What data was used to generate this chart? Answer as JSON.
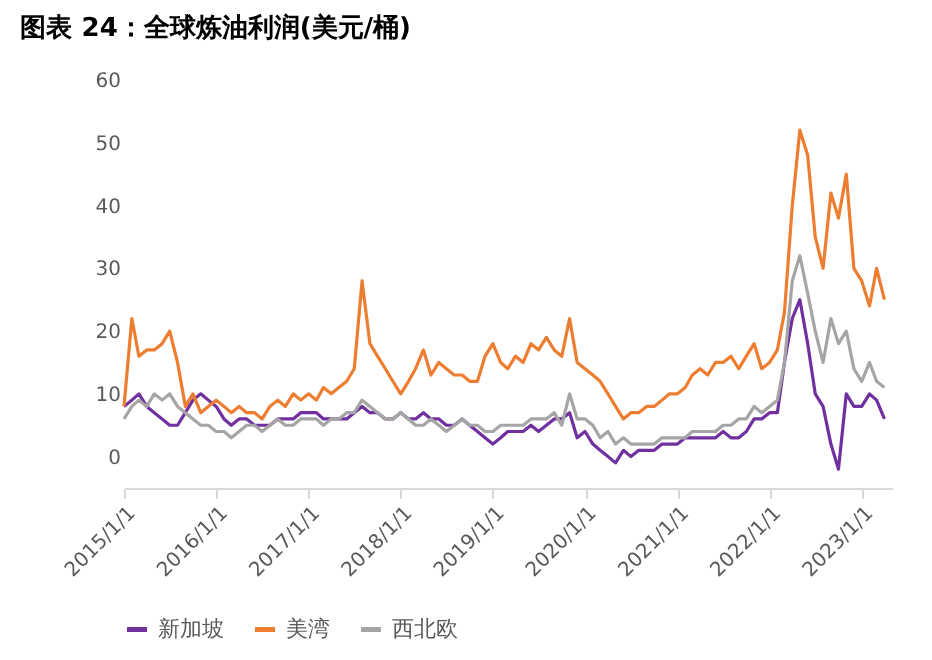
{
  "chart_data": {
    "type": "line",
    "title": "图表 24：全球炼油利润(美元/桶)",
    "x": [
      "2015-01",
      "2015-02",
      "2015-03",
      "2015-04",
      "2015-05",
      "2015-06",
      "2015-07",
      "2015-08",
      "2015-09",
      "2015-10",
      "2015-11",
      "2015-12",
      "2016-01",
      "2016-02",
      "2016-03",
      "2016-04",
      "2016-05",
      "2016-06",
      "2016-07",
      "2016-08",
      "2016-09",
      "2016-10",
      "2016-11",
      "2016-12",
      "2017-01",
      "2017-02",
      "2017-03",
      "2017-04",
      "2017-05",
      "2017-06",
      "2017-07",
      "2017-08",
      "2017-09",
      "2017-10",
      "2017-11",
      "2017-12",
      "2018-01",
      "2018-02",
      "2018-03",
      "2018-04",
      "2018-05",
      "2018-06",
      "2018-07",
      "2018-08",
      "2018-09",
      "2018-10",
      "2018-11",
      "2018-12",
      "2019-01",
      "2019-02",
      "2019-03",
      "2019-04",
      "2019-05",
      "2019-06",
      "2019-07",
      "2019-08",
      "2019-09",
      "2019-10",
      "2019-11",
      "2019-12",
      "2020-01",
      "2020-02",
      "2020-03",
      "2020-04",
      "2020-05",
      "2020-06",
      "2020-07",
      "2020-08",
      "2020-09",
      "2020-10",
      "2020-11",
      "2020-12",
      "2021-01",
      "2021-02",
      "2021-03",
      "2021-04",
      "2021-05",
      "2021-06",
      "2021-07",
      "2021-08",
      "2021-09",
      "2021-10",
      "2021-11",
      "2021-12",
      "2022-01",
      "2022-02",
      "2022-03",
      "2022-04",
      "2022-05",
      "2022-06",
      "2022-07",
      "2022-08",
      "2022-09",
      "2022-10",
      "2022-11",
      "2022-12",
      "2023-01",
      "2023-02",
      "2023-03",
      "2023-04"
    ],
    "series": [
      {
        "name": "新加坡",
        "color": "#7030a0",
        "values": [
          8,
          9,
          10,
          8,
          7,
          6,
          5,
          5,
          7,
          9,
          10,
          9,
          8,
          6,
          5,
          6,
          6,
          5,
          5,
          5,
          6,
          6,
          6,
          7,
          7,
          7,
          6,
          6,
          6,
          6,
          7,
          8,
          7,
          7,
          6,
          6,
          7,
          6,
          6,
          7,
          6,
          6,
          5,
          5,
          6,
          5,
          4,
          3,
          2,
          3,
          4,
          4,
          4,
          5,
          4,
          5,
          6,
          6,
          7,
          3,
          4,
          2,
          1,
          0,
          -1,
          1,
          0,
          1,
          1,
          1,
          2,
          2,
          2,
          3,
          3,
          3,
          3,
          3,
          4,
          3,
          3,
          4,
          6,
          6,
          7,
          7,
          15,
          22,
          25,
          18,
          10,
          8,
          2,
          -2,
          10,
          8,
          8,
          10,
          9,
          6
        ]
      },
      {
        "name": "美湾",
        "color": "#ed7d31",
        "values": [
          8,
          22,
          16,
          17,
          17,
          18,
          20,
          15,
          8,
          10,
          7,
          8,
          9,
          8,
          7,
          8,
          7,
          7,
          6,
          8,
          9,
          8,
          10,
          9,
          10,
          9,
          11,
          10,
          11,
          12,
          14,
          28,
          18,
          16,
          14,
          12,
          10,
          12,
          14,
          17,
          13,
          15,
          14,
          13,
          13,
          12,
          12,
          16,
          18,
          15,
          14,
          16,
          15,
          18,
          17,
          19,
          17,
          16,
          22,
          15,
          14,
          13,
          12,
          10,
          8,
          6,
          7,
          7,
          8,
          8,
          9,
          10,
          10,
          11,
          13,
          14,
          13,
          15,
          15,
          16,
          14,
          16,
          18,
          14,
          15,
          17,
          23,
          40,
          52,
          48,
          35,
          30,
          42,
          38,
          45,
          30,
          28,
          24,
          30,
          25
        ]
      },
      {
        "name": "西北欧",
        "color": "#a5a5a5",
        "values": [
          6,
          8,
          9,
          8,
          10,
          9,
          10,
          8,
          7,
          6,
          5,
          5,
          4,
          4,
          3,
          4,
          5,
          5,
          4,
          5,
          6,
          5,
          5,
          6,
          6,
          6,
          5,
          6,
          6,
          7,
          7,
          9,
          8,
          7,
          6,
          6,
          7,
          6,
          5,
          5,
          6,
          5,
          4,
          5,
          6,
          5,
          5,
          4,
          4,
          5,
          5,
          5,
          5,
          6,
          6,
          6,
          7,
          5,
          10,
          6,
          6,
          5,
          3,
          4,
          2,
          3,
          2,
          2,
          2,
          2,
          3,
          3,
          3,
          3,
          4,
          4,
          4,
          4,
          5,
          5,
          6,
          6,
          8,
          7,
          8,
          9,
          15,
          28,
          32,
          26,
          20,
          15,
          22,
          18,
          20,
          14,
          12,
          15,
          12,
          11
        ]
      }
    ],
    "xlim": [
      "2015-01",
      "2023-05"
    ],
    "xticks": [
      {
        "value": "2015-01-01",
        "label": "2015/1/1"
      },
      {
        "value": "2016-01-01",
        "label": "2016/1/1"
      },
      {
        "value": "2017-01-01",
        "label": "2017/1/1"
      },
      {
        "value": "2018-01-01",
        "label": "2018/1/1"
      },
      {
        "value": "2019-01-01",
        "label": "2019/1/1"
      },
      {
        "value": "2020-01-01",
        "label": "2020/1/1"
      },
      {
        "value": "2021-01-01",
        "label": "2021/1/1"
      },
      {
        "value": "2022-01-01",
        "label": "2022/1/1"
      },
      {
        "value": "2023-01-01",
        "label": "2023/1/1"
      }
    ],
    "ylim": [
      -5,
      60
    ],
    "yticks": [
      0,
      10,
      20,
      30,
      40,
      50,
      60
    ],
    "grid": false,
    "legend": "bottom",
    "marker": "none",
    "line_style": "solid"
  }
}
